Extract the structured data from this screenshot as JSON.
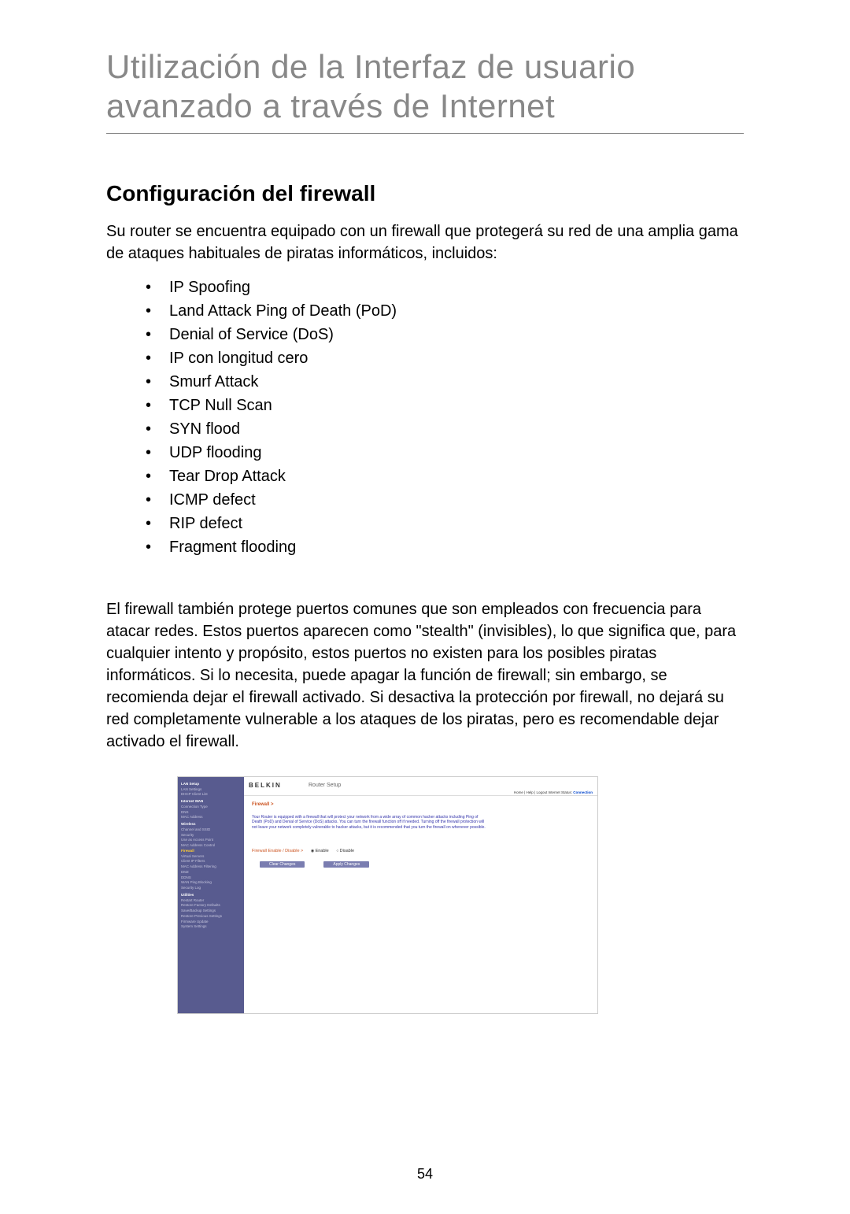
{
  "page": {
    "title": "Utilización de la Interfaz de usuario avanzado a través de Internet",
    "number": "54"
  },
  "section": {
    "heading": "Configuración del firewall",
    "intro": "Su router se encuentra equipado con un firewall que protegerá su red de una amplia gama de ataques habituales de piratas informáticos, incluidos:",
    "attacks": [
      "IP Spoofing",
      "Land Attack Ping of Death (PoD)",
      "Denial of Service (DoS)",
      "IP con longitud cero",
      "Smurf Attack",
      "TCP Null Scan",
      "SYN flood",
      "UDP flooding",
      "Tear Drop Attack",
      "ICMP defect",
      "RIP defect",
      "Fragment flooding"
    ],
    "body": "El firewall también protege puertos comunes que son empleados con frecuencia para atacar redes. Estos puertos aparecen como \"stealth\" (invisibles), lo que significa que, para cualquier intento y propósito, estos puertos no existen para los posibles piratas informáticos. Si lo necesita, puede apagar la función de firewall; sin embargo, se recomienda dejar el firewall activado. Si desactiva la protección por firewall, no dejará su red completamente vulnerable a los ataques de los piratas, pero es recomendable dejar activado el firewall."
  },
  "screenshot": {
    "logo": "BELKIN",
    "header_title": "Router Setup",
    "header_links_prefix": "Home | Help | Logout   Internet Status: ",
    "header_status": "Connection",
    "breadcrumb": "Firewall >",
    "description": "Your Router is equipped with a firewall that will protect your network from a wide array of common hacker attacks including Ping of Death (PoD) and Denial of Service (DoS) attacks. You can turn the firewall function off if needed. Turning off the firewall protection will not leave your network completely vulnerable to hacker attacks, but it is recommended that you turn the firewall on whenever possible.",
    "radio": {
      "label": "Firewall Enable / Disable >",
      "enable": "Enable",
      "disable": "Disable"
    },
    "buttons": {
      "clear": "Clear Changes",
      "apply": "Apply Changes"
    },
    "sidebar": {
      "cat_lan": "LAN Setup",
      "lan_settings": "LAN Settings",
      "dhcp_client": "DHCP Client List",
      "cat_wan": "Internet WAN",
      "conn_type": "Connection Type",
      "dns": "DNS",
      "mac_addr": "MAC Address",
      "cat_wireless": "Wireless",
      "channel_ssid": "Channel and SSID",
      "security": "Security",
      "use_ap": "Use as Access Point",
      "mac_ac": "MAC Address Control",
      "cat_firewall": "Firewall",
      "virtual_servers": "Virtual Servers",
      "client_filters": "Client IP Filters",
      "mac_filter": "MAC Address Filtering",
      "dmz": "DMZ",
      "ddns": "DDNS",
      "wan_ping": "WAN Ping Blocking",
      "security_log": "Security Log",
      "cat_utilities": "Utilities",
      "restart": "Restart Router",
      "restore_factory": "Restore Factory Defaults",
      "save_backup": "Save/Backup Settings",
      "restore_prev": "Restore Previous Settings",
      "firmware": "Firmware Update",
      "system": "System Settings"
    }
  },
  "colors": {
    "title_gray": "#888888",
    "sidebar_bg": "#585b8f",
    "sidebar_text": "#c5c5dd",
    "sidebar_active": "#ffcc33",
    "link_orange": "#cc5522",
    "desc_blue": "#3333aa",
    "btn_bg": "#7a7db0"
  }
}
